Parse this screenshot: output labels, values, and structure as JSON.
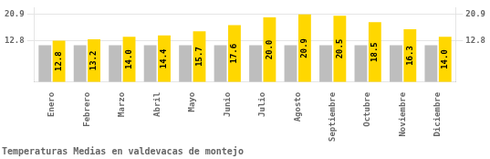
{
  "chart_data": {
    "type": "bar",
    "title": "Temperaturas Medias en valdevacas de montejo",
    "categories": [
      "Enero",
      "Febrero",
      "Marzo",
      "Abril",
      "Mayo",
      "Junio",
      "Julio",
      "Agosto",
      "Septiembre",
      "Octubre",
      "Noviembre",
      "Diciembre"
    ],
    "series": [
      {
        "color": "#BEBEBE",
        "values": [
          11.4,
          11.4,
          11.4,
          11.4,
          11.4,
          11.4,
          11.4,
          11.4,
          11.4,
          11.4,
          11.4,
          11.4
        ]
      },
      {
        "color": "#FFD700",
        "values": [
          12.8,
          13.2,
          14.0,
          14.4,
          15.7,
          17.6,
          20.0,
          20.9,
          20.5,
          18.5,
          16.3,
          14.0
        ],
        "value_labels": [
          "12.8",
          "13.2",
          "14.0",
          "14.4",
          "15.7",
          "17.6",
          "20.0",
          "20.9",
          "20.5",
          "18.5",
          "16.3",
          "14.0"
        ],
        "data_labels": true
      }
    ],
    "ylim": [
      0,
      23.0
    ],
    "yticks": [
      12.8,
      20.9
    ],
    "y2lim": [
      0,
      23.0
    ],
    "y2ticks": [
      12.8,
      20.9
    ],
    "grid": true
  }
}
